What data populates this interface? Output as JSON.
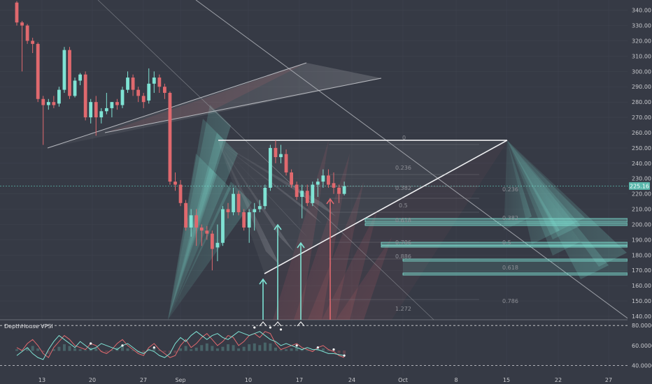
{
  "chart_data": {
    "type": "candlestick",
    "price_axis": {
      "ticks": [
        "340.00",
        "330.00",
        "320.00",
        "310.00",
        "300.00",
        "290.00",
        "280.00",
        "270.00",
        "260.00",
        "250.00",
        "240.00",
        "230.00",
        "220.00",
        "210.00",
        "200.00",
        "190.00",
        "180.00",
        "170.00",
        "160.00",
        "150.00",
        "140.00"
      ],
      "ylim": [
        140,
        346
      ]
    },
    "time_axis": [
      "13",
      "20",
      "27",
      "Sep",
      "10",
      "17",
      "24",
      "Oct",
      "8",
      "15",
      "22",
      "27"
    ],
    "current_price": "225.16",
    "indicator": {
      "title": "DepthHouse VPSI",
      "levels": [
        "80.0000",
        "60.0000",
        "40.0000"
      ],
      "ylim": [
        30,
        85
      ]
    },
    "fib_labels": {
      "inner": [
        "0",
        "0.236",
        "0.382",
        "0.5",
        "0.618",
        "0.786",
        "0.886",
        "1.272"
      ],
      "outer": [
        "0.236",
        "0.382",
        "0.5",
        "0.618",
        "0.786"
      ]
    },
    "colors": {
      "up": "#7fe3d4",
      "down": "#e0696e",
      "background": "#363a45",
      "grid": "#3f434e",
      "zone": "#7fe3d4",
      "signal_up": "#7fe3d4",
      "signal_down": "#e0696e"
    },
    "candles": [
      {
        "o": 345,
        "h": 346,
        "l": 330,
        "c": 332
      },
      {
        "o": 332,
        "h": 333,
        "l": 300,
        "c": 330
      },
      {
        "o": 330,
        "h": 331,
        "l": 318,
        "c": 320
      },
      {
        "o": 320,
        "h": 322,
        "l": 312,
        "c": 318
      },
      {
        "o": 318,
        "h": 319,
        "l": 280,
        "c": 282
      },
      {
        "o": 282,
        "h": 284,
        "l": 252,
        "c": 278
      },
      {
        "o": 278,
        "h": 282,
        "l": 275,
        "c": 280
      },
      {
        "o": 280,
        "h": 284,
        "l": 276,
        "c": 278
      },
      {
        "o": 279,
        "h": 290,
        "l": 277,
        "c": 288
      },
      {
        "o": 288,
        "h": 316,
        "l": 286,
        "c": 314
      },
      {
        "o": 314,
        "h": 316,
        "l": 282,
        "c": 284
      },
      {
        "o": 284,
        "h": 296,
        "l": 283,
        "c": 294
      },
      {
        "o": 294,
        "h": 299,
        "l": 291,
        "c": 298
      },
      {
        "o": 298,
        "h": 300,
        "l": 268,
        "c": 270
      },
      {
        "o": 270,
        "h": 282,
        "l": 266,
        "c": 280
      },
      {
        "o": 280,
        "h": 284,
        "l": 258,
        "c": 270
      },
      {
        "o": 270,
        "h": 276,
        "l": 266,
        "c": 274
      },
      {
        "o": 274,
        "h": 286,
        "l": 272,
        "c": 276
      },
      {
        "o": 276,
        "h": 280,
        "l": 270,
        "c": 280
      },
      {
        "o": 280,
        "h": 282,
        "l": 275,
        "c": 278
      },
      {
        "o": 278,
        "h": 290,
        "l": 276,
        "c": 288
      },
      {
        "o": 288,
        "h": 300,
        "l": 286,
        "c": 296
      },
      {
        "o": 296,
        "h": 298,
        "l": 284,
        "c": 288
      },
      {
        "o": 288,
        "h": 290,
        "l": 280,
        "c": 284
      },
      {
        "o": 284,
        "h": 286,
        "l": 276,
        "c": 280
      },
      {
        "o": 281,
        "h": 302,
        "l": 279,
        "c": 292
      },
      {
        "o": 292,
        "h": 300,
        "l": 286,
        "c": 296
      },
      {
        "o": 296,
        "h": 298,
        "l": 286,
        "c": 290
      },
      {
        "o": 290,
        "h": 292,
        "l": 282,
        "c": 286
      },
      {
        "o": 286,
        "h": 287,
        "l": 226,
        "c": 228
      },
      {
        "o": 228,
        "h": 234,
        "l": 222,
        "c": 226
      },
      {
        "o": 226,
        "h": 229,
        "l": 212,
        "c": 214
      },
      {
        "o": 214,
        "h": 216,
        "l": 196,
        "c": 198
      },
      {
        "o": 198,
        "h": 210,
        "l": 192,
        "c": 206
      },
      {
        "o": 206,
        "h": 210,
        "l": 186,
        "c": 198
      },
      {
        "o": 198,
        "h": 200,
        "l": 186,
        "c": 196
      },
      {
        "o": 196,
        "h": 199,
        "l": 190,
        "c": 194
      },
      {
        "o": 194,
        "h": 196,
        "l": 170,
        "c": 184
      },
      {
        "o": 185,
        "h": 200,
        "l": 176,
        "c": 188
      },
      {
        "o": 188,
        "h": 212,
        "l": 186,
        "c": 210
      },
      {
        "o": 210,
        "h": 214,
        "l": 204,
        "c": 208
      },
      {
        "o": 208,
        "h": 224,
        "l": 206,
        "c": 220
      },
      {
        "o": 220,
        "h": 222,
        "l": 206,
        "c": 208
      },
      {
        "o": 208,
        "h": 210,
        "l": 196,
        "c": 198
      },
      {
        "o": 198,
        "h": 210,
        "l": 188,
        "c": 208
      },
      {
        "o": 208,
        "h": 214,
        "l": 196,
        "c": 210
      },
      {
        "o": 210,
        "h": 216,
        "l": 208,
        "c": 212
      },
      {
        "o": 212,
        "h": 226,
        "l": 210,
        "c": 224
      },
      {
        "o": 224,
        "h": 252,
        "l": 222,
        "c": 250
      },
      {
        "o": 250,
        "h": 255,
        "l": 240,
        "c": 244
      },
      {
        "o": 244,
        "h": 252,
        "l": 240,
        "c": 246
      },
      {
        "o": 246,
        "h": 249,
        "l": 232,
        "c": 234
      },
      {
        "o": 234,
        "h": 236,
        "l": 224,
        "c": 226
      },
      {
        "o": 226,
        "h": 228,
        "l": 216,
        "c": 218
      },
      {
        "o": 218,
        "h": 226,
        "l": 204,
        "c": 222
      },
      {
        "o": 222,
        "h": 226,
        "l": 212,
        "c": 214
      },
      {
        "o": 214,
        "h": 228,
        "l": 212,
        "c": 226
      },
      {
        "o": 226,
        "h": 230,
        "l": 218,
        "c": 228
      },
      {
        "o": 228,
        "h": 236,
        "l": 224,
        "c": 232
      },
      {
        "o": 232,
        "h": 236,
        "l": 224,
        "c": 226
      },
      {
        "o": 227,
        "h": 234,
        "l": 220,
        "c": 224
      },
      {
        "o": 224,
        "h": 226,
        "l": 214,
        "c": 220
      },
      {
        "o": 220,
        "h": 228,
        "l": 219,
        "c": 225
      }
    ],
    "vpsi": {
      "line_a": [
        58,
        55,
        62,
        66,
        60,
        52,
        48,
        58,
        64,
        70,
        66,
        60,
        58,
        56,
        62,
        60,
        54,
        52,
        56,
        62,
        66,
        60,
        56,
        52,
        50,
        58,
        62,
        56,
        52,
        48,
        50,
        60,
        66,
        58,
        62,
        68,
        72,
        66,
        60,
        64,
        70,
        68,
        60,
        64,
        70,
        72,
        68,
        74,
        72,
        62,
        56,
        58,
        60,
        62,
        58,
        56,
        54,
        58,
        60,
        56,
        54,
        50,
        48
      ],
      "line_b": [
        50,
        54,
        58,
        52,
        48,
        46,
        56,
        64,
        70,
        66,
        62,
        58,
        64,
        60,
        56,
        58,
        62,
        60,
        58,
        56,
        60,
        62,
        58,
        54,
        52,
        56,
        54,
        50,
        48,
        52,
        62,
        68,
        64,
        70,
        74,
        70,
        66,
        70,
        72,
        68,
        66,
        70,
        74,
        72,
        70,
        72,
        74,
        70,
        66,
        64,
        60,
        62,
        60,
        58,
        56,
        58,
        56,
        56,
        54,
        52,
        52,
        51,
        50
      ]
    }
  }
}
